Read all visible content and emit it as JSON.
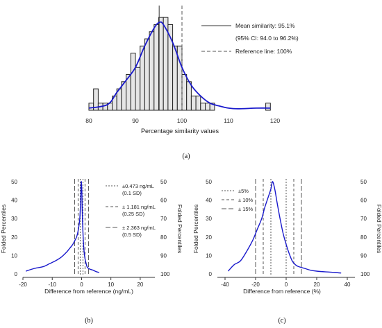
{
  "chart_data": [
    {
      "type": "bar",
      "panel_label": "(a)",
      "xlabel": "Percentage similarity values",
      "xlim": [
        80,
        120
      ],
      "x_ticks": [
        "80",
        "90",
        "100",
        "110",
        "120"
      ],
      "bin_edges": [
        80,
        81,
        82,
        83,
        84,
        85,
        86,
        87,
        88,
        89,
        90,
        91,
        92,
        93,
        94,
        95,
        96,
        97,
        98,
        99,
        100,
        101,
        102,
        103,
        104,
        105,
        106,
        107,
        108,
        109,
        110,
        111,
        112,
        113,
        114,
        115,
        116,
        117,
        118,
        119
      ],
      "counts": [
        1,
        3,
        1,
        1,
        1,
        2,
        3,
        4,
        5,
        8,
        6,
        9,
        10,
        11,
        12,
        13,
        13,
        12,
        9,
        9,
        5,
        4,
        2,
        2,
        1,
        1,
        1,
        0,
        0,
        0,
        0,
        0,
        0,
        0,
        0,
        0,
        0,
        0,
        1
      ],
      "density_curve": {
        "x": [
          80,
          84,
          86,
          88,
          90,
          92,
          94,
          95.1,
          96,
          98,
          100,
          102,
          104,
          106,
          108,
          110,
          112,
          116,
          119
        ],
        "y": [
          0.3,
          0.8,
          2.5,
          4.2,
          6.0,
          9.0,
          11.5,
          12.3,
          12.0,
          9.5,
          6.0,
          3.5,
          2.0,
          1.0,
          0.6,
          0.3,
          0.2,
          0.3,
          0.3
        ]
      },
      "mean": 95.1,
      "reference_line": 100,
      "legend": [
        {
          "style": "solid",
          "label": "Mean similarity: 95.1%"
        },
        {
          "style": "text",
          "label": "(95% CI: 94.0 to 96.2%)"
        },
        {
          "style": "dashed",
          "label": "Reference line: 100%"
        }
      ]
    },
    {
      "type": "line",
      "panel_label": "(b)",
      "xlabel": "Difference from reference (ng/mL)",
      "ylabel": "Folded Percentiles",
      "y2label": "Folded Percentiles",
      "xlim": [
        -20,
        25
      ],
      "ylim": [
        0,
        50
      ],
      "x_ticks": [
        "-20",
        "-10",
        "0",
        "10",
        "20"
      ],
      "y_ticks": [
        "0",
        "10",
        "20",
        "30",
        "40",
        "50"
      ],
      "y2_ticks": [
        "100",
        "90",
        "80",
        "70",
        "60",
        "50"
      ],
      "curve": {
        "x": [
          -19,
          -16,
          -13,
          -11,
          -9,
          -7,
          -5,
          -4,
          -3,
          -2,
          -1.5,
          -1,
          -0.6,
          -0.3,
          -0.1,
          0.1,
          0.3,
          0.6,
          1,
          1.5,
          2,
          3,
          4,
          5,
          6
        ],
        "y": [
          1.5,
          3,
          4,
          5.5,
          7,
          9,
          12,
          14,
          16,
          19,
          21,
          25,
          30,
          40,
          50,
          44,
          30,
          18,
          10,
          6,
          3.5,
          2.5,
          2,
          1.2,
          0.8
        ]
      },
      "ref_lines": [
        {
          "x": 0.473,
          "style": "short-dash",
          "label": "±0.473 ng/mL",
          "sublabel": "(0.1 SD)"
        },
        {
          "x": 1.181,
          "style": "dash",
          "label": "± 1.181 ng/mL",
          "sublabel": "(0.25 SD)"
        },
        {
          "x": 2.363,
          "style": "long-dash",
          "label": "± 2.363 ng/mL",
          "sublabel": "(0.5 SD)"
        }
      ]
    },
    {
      "type": "line",
      "panel_label": "(c)",
      "xlabel": "Difference from reference (%)",
      "ylabel": "Folded Percentiles",
      "y2label": "Folded Percentiles",
      "xlim": [
        -45,
        45
      ],
      "ylim": [
        0,
        50
      ],
      "x_ticks": [
        "-40",
        "-20",
        "0",
        "20",
        "40"
      ],
      "y_ticks": [
        "0",
        "10",
        "20",
        "30",
        "40",
        "50"
      ],
      "y2_ticks": [
        "100",
        "90",
        "80",
        "70",
        "60",
        "50"
      ],
      "curve": {
        "x": [
          -38,
          -34,
          -30,
          -26,
          -22,
          -19,
          -16,
          -14,
          -12,
          -10,
          -9,
          -8,
          -7,
          -6,
          -4,
          -2,
          0,
          2,
          4,
          6,
          8,
          12,
          16,
          20,
          28,
          36
        ],
        "y": [
          1.5,
          5,
          7,
          12,
          18,
          24,
          30,
          36,
          41,
          46,
          50,
          48,
          44,
          39,
          30,
          22,
          16,
          11,
          7,
          5,
          4,
          3,
          2,
          1.5,
          1,
          0.5
        ]
      },
      "ref_lines": [
        {
          "x": 5,
          "style": "short-dash",
          "label": "±5%"
        },
        {
          "x": 10,
          "style": "dash",
          "label": "± 10%"
        },
        {
          "x": 15,
          "style": "long-dash",
          "label": "± 15%"
        }
      ],
      "ref_center": -5
    }
  ],
  "colors": {
    "curve": "#1a1acc",
    "bar_fill": "#e6e6e6",
    "bar_stroke": "#222222",
    "axis": "#333333",
    "dash": "#555555"
  }
}
